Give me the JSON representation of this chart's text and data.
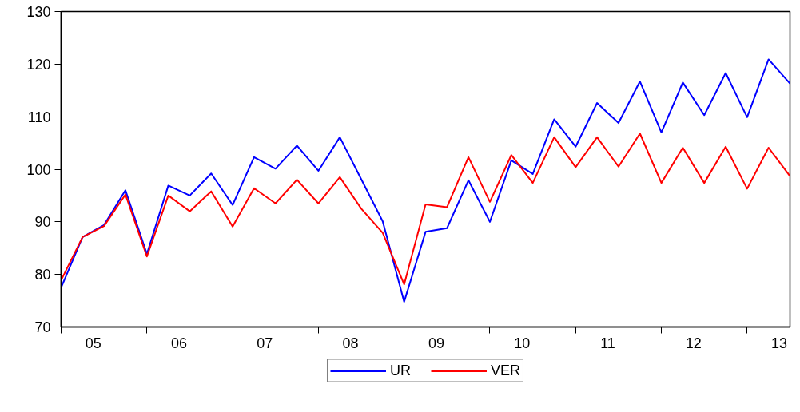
{
  "chart_data": {
    "type": "line",
    "x": [
      2004.625,
      2004.875,
      2005.125,
      2005.375,
      2005.625,
      2005.875,
      2006.125,
      2006.375,
      2006.625,
      2006.875,
      2007.125,
      2007.375,
      2007.625,
      2007.875,
      2008.125,
      2008.375,
      2008.625,
      2008.875,
      2009.125,
      2009.375,
      2009.625,
      2009.875,
      2010.125,
      2010.375,
      2010.625,
      2010.875,
      2011.125,
      2011.375,
      2011.625,
      2011.875,
      2012.125,
      2012.375,
      2012.625,
      2012.875,
      2013.125
    ],
    "series": [
      {
        "name": "UR",
        "color": "#0000ff",
        "values": [
          77.5,
          87.1,
          89.4,
          96.0,
          83.9,
          96.9,
          95.0,
          99.2,
          93.2,
          102.3,
          100.1,
          104.5,
          99.7,
          106.1,
          98.1,
          90.1,
          74.8,
          88.1,
          88.8,
          97.9,
          90.0,
          101.7,
          99.1,
          109.5,
          104.3,
          112.6,
          108.8,
          116.7,
          107.0,
          116.5,
          110.3,
          118.3,
          109.9,
          120.9,
          116.3
        ]
      },
      {
        "name": "VER",
        "color": "#ff0000",
        "values": [
          78.9,
          87.1,
          89.2,
          95.2,
          83.4,
          95.0,
          92.0,
          95.8,
          89.1,
          96.4,
          93.5,
          98.0,
          93.5,
          98.5,
          92.5,
          87.9,
          78.1,
          93.3,
          92.8,
          102.3,
          93.8,
          102.7,
          97.4,
          106.1,
          100.4,
          106.1,
          100.5,
          106.8,
          97.4,
          104.1,
          97.4,
          104.3,
          96.3,
          104.1,
          98.7
        ]
      }
    ],
    "xlim": [
      2004.625,
      2013.125
    ],
    "xticks": [
      {
        "value": 2005,
        "label": "05"
      },
      {
        "value": 2006,
        "label": "06"
      },
      {
        "value": 2007,
        "label": "07"
      },
      {
        "value": 2008,
        "label": "08"
      },
      {
        "value": 2009,
        "label": "09"
      },
      {
        "value": 2010,
        "label": "10"
      },
      {
        "value": 2011,
        "label": "11"
      },
      {
        "value": 2012,
        "label": "12"
      },
      {
        "value": 2013,
        "label": "13"
      },
      {
        "value": 2004.625,
        "label": null
      },
      {
        "value": 2005.625,
        "label": null
      },
      {
        "value": 2006.625,
        "label": null
      },
      {
        "value": 2007.625,
        "label": null
      },
      {
        "value": 2008.625,
        "label": null
      },
      {
        "value": 2009.625,
        "label": null
      },
      {
        "value": 2010.625,
        "label": null
      },
      {
        "value": 2011.625,
        "label": null
      },
      {
        "value": 2012.625,
        "label": null
      }
    ],
    "ylim": [
      70,
      130
    ],
    "yticks": [
      70,
      80,
      90,
      100,
      110,
      120,
      130
    ],
    "grid": false,
    "legend": "bottom",
    "marker": "none",
    "line_style": "solid"
  }
}
